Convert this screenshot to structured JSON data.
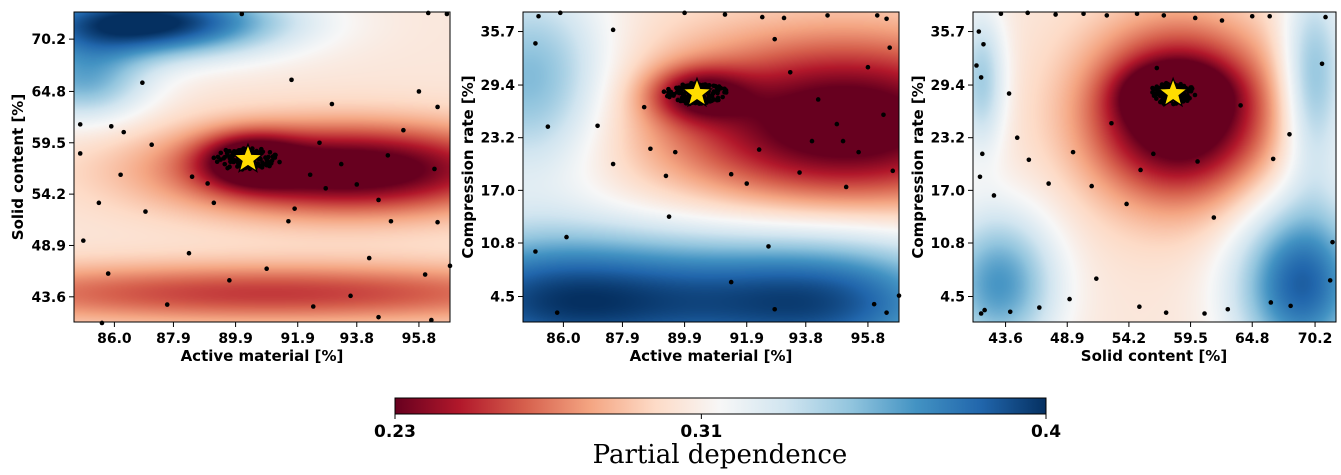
{
  "chart_data": [
    {
      "type": "heatmap",
      "xlabel": "Active material [%]",
      "ylabel": "Solid content [%]",
      "xticks": [
        86.0,
        87.9,
        89.9,
        91.9,
        93.8,
        95.8
      ],
      "xtick_labels": [
        "86.0",
        "87.9",
        "89.9",
        "91.9",
        "93.8",
        "95.8"
      ],
      "yticks": [
        43.6,
        48.9,
        54.2,
        59.5,
        64.8,
        70.2
      ],
      "ytick_labels": [
        "43.6",
        "48.9",
        "54.2",
        "59.5",
        "64.8",
        "70.2"
      ],
      "xlim": [
        84.7,
        96.8
      ],
      "ylim": [
        41.0,
        73.0
      ],
      "optimum": {
        "x": 90.3,
        "y": 57.8
      },
      "low_bands": [
        {
          "center": 93.5,
          "spread_x": 4.0,
          "y": 56.8,
          "spread_y": 3.2,
          "depth": 0.09
        },
        {
          "center": 91.0,
          "spread_x": 8.0,
          "y": 44.0,
          "spread_y": 2.2,
          "depth": 0.05
        }
      ],
      "high_regions": [
        {
          "x": 87.0,
          "y": 72.0,
          "sx": 3.0,
          "sy": 2.5,
          "height": 0.1
        },
        {
          "x": 85.0,
          "y": 66.0,
          "sx": 1.5,
          "sy": 3.0,
          "height": 0.05
        }
      ],
      "samples": [
        [
          87.2,
          59.3
        ],
        [
          86.3,
          60.6
        ],
        [
          85.9,
          61.2
        ],
        [
          88.5,
          56.0
        ],
        [
          89.0,
          55.3
        ],
        [
          87.0,
          52.4
        ],
        [
          86.2,
          56.2
        ],
        [
          85.5,
          53.3
        ],
        [
          87.7,
          42.8
        ],
        [
          89.7,
          45.3
        ],
        [
          92.3,
          56.2
        ],
        [
          91.8,
          52.7
        ],
        [
          91.6,
          51.4
        ],
        [
          93.8,
          55.2
        ],
        [
          94.5,
          53.6
        ],
        [
          93.3,
          57.3
        ],
        [
          95.3,
          60.8
        ],
        [
          95.8,
          64.8
        ],
        [
          94.9,
          51.4
        ],
        [
          94.2,
          47.6
        ],
        [
          96.3,
          56.8
        ],
        [
          96.4,
          51.3
        ],
        [
          96.0,
          45.9
        ],
        [
          93.6,
          43.7
        ],
        [
          92.4,
          42.6
        ],
        [
          94.5,
          41.5
        ],
        [
          96.2,
          41.2
        ],
        [
          89.2,
          53.3
        ],
        [
          90.9,
          46.5
        ],
        [
          96.7,
          72.8
        ],
        [
          96.1,
          72.9
        ],
        [
          90.1,
          72.8
        ],
        [
          85.8,
          46.0
        ],
        [
          85.6,
          40.9
        ],
        [
          85.0,
          49.4
        ],
        [
          93.0,
          63.5
        ],
        [
          94.8,
          58.2
        ],
        [
          91.7,
          66.0
        ],
        [
          96.4,
          63.2
        ],
        [
          92.6,
          59.5
        ],
        [
          86.9,
          65.7
        ],
        [
          84.9,
          58.4
        ],
        [
          84.9,
          61.4
        ],
        [
          96.8,
          46.8
        ],
        [
          92.8,
          54.8
        ],
        [
          88.4,
          48.1
        ]
      ]
    },
    {
      "type": "heatmap",
      "xlabel": "Active material [%]",
      "ylabel": "Compression rate [%]",
      "xticks": [
        86.0,
        87.9,
        89.9,
        91.9,
        93.8,
        95.8
      ],
      "xtick_labels": [
        "86.0",
        "87.9",
        "89.9",
        "91.9",
        "93.8",
        "95.8"
      ],
      "yticks": [
        4.5,
        10.8,
        17.0,
        23.2,
        29.4,
        35.7
      ],
      "ytick_labels": [
        "4.5",
        "10.8",
        "17.0",
        "23.2",
        "29.4",
        "35.7"
      ],
      "xlim": [
        84.7,
        96.8
      ],
      "ylim": [
        1.5,
        38.0
      ],
      "optimum": {
        "x": 90.3,
        "y": 28.4
      },
      "low_bands": [
        {
          "center": 95.0,
          "spread_x": 4.0,
          "y": 25.0,
          "spread_y": 7.0,
          "depth": 0.09
        }
      ],
      "high_regions": [
        {
          "x": 86.0,
          "y": 4.0,
          "sx": 4.0,
          "sy": 6.0,
          "height": 0.09
        },
        {
          "x": 94.5,
          "y": 4.0,
          "sx": 3.5,
          "sy": 6.0,
          "height": 0.08
        },
        {
          "x": 85.0,
          "y": 30.0,
          "sx": 1.8,
          "sy": 8.0,
          "height": 0.05
        }
      ],
      "samples": [
        [
          85.2,
          37.5
        ],
        [
          85.9,
          37.9
        ],
        [
          89.9,
          37.9
        ],
        [
          91.2,
          37.7
        ],
        [
          92.4,
          37.4
        ],
        [
          93.1,
          37.3
        ],
        [
          94.5,
          37.6
        ],
        [
          96.1,
          37.6
        ],
        [
          96.4,
          37.2
        ],
        [
          87.6,
          35.9
        ],
        [
          87.1,
          24.6
        ],
        [
          85.5,
          24.5
        ],
        [
          92.8,
          34.8
        ],
        [
          93.3,
          30.9
        ],
        [
          94.2,
          27.7
        ],
        [
          95.8,
          31.5
        ],
        [
          96.3,
          25.9
        ],
        [
          94.8,
          24.8
        ],
        [
          94.0,
          22.8
        ],
        [
          95.5,
          21.5
        ],
        [
          96.6,
          19.3
        ],
        [
          95.1,
          17.4
        ],
        [
          93.6,
          19.1
        ],
        [
          92.3,
          21.8
        ],
        [
          91.4,
          18.9
        ],
        [
          91.9,
          17.8
        ],
        [
          89.6,
          21.5
        ],
        [
          89.3,
          18.7
        ],
        [
          88.8,
          21.9
        ],
        [
          89.4,
          13.9
        ],
        [
          92.6,
          10.4
        ],
        [
          91.4,
          6.2
        ],
        [
          87.6,
          20.1
        ],
        [
          86.1,
          11.5
        ],
        [
          85.1,
          9.8
        ],
        [
          92.8,
          3.0
        ],
        [
          96.4,
          2.6
        ],
        [
          96.0,
          3.6
        ],
        [
          96.8,
          4.6
        ],
        [
          85.8,
          2.6
        ],
        [
          85.1,
          34.3
        ],
        [
          96.5,
          33.8
        ],
        [
          88.6,
          26.8
        ],
        [
          95.0,
          22.8
        ]
      ]
    },
    {
      "type": "heatmap",
      "xlabel": "Solid content [%]",
      "ylabel": "Compression rate [%]",
      "xticks": [
        43.6,
        48.9,
        54.2,
        59.5,
        64.8,
        70.2
      ],
      "xtick_labels": [
        "43.6",
        "48.9",
        "54.2",
        "59.5",
        "64.8",
        "70.2"
      ],
      "yticks": [
        4.5,
        10.8,
        17.0,
        23.2,
        29.4,
        35.7
      ],
      "ytick_labels": [
        "4.5",
        "10.8",
        "17.0",
        "23.2",
        "29.4",
        "35.7"
      ],
      "xlim": [
        40.8,
        72.0
      ],
      "ylim": [
        1.5,
        38.0
      ],
      "optimum": {
        "x": 58.0,
        "y": 28.4
      },
      "low_bands": [
        {
          "center": 58.5,
          "spread_x": 5.5,
          "y": 26.0,
          "spread_y": 7.0,
          "depth": 0.1
        }
      ],
      "high_regions": [
        {
          "x": 69.0,
          "y": 6.0,
          "sx": 4.0,
          "sy": 7.0,
          "height": 0.08
        },
        {
          "x": 43.0,
          "y": 6.0,
          "sx": 3.5,
          "sy": 6.0,
          "height": 0.06
        },
        {
          "x": 70.0,
          "y": 30.0,
          "sx": 2.0,
          "sy": 8.0,
          "height": 0.05
        },
        {
          "x": 41.5,
          "y": 30.0,
          "sx": 1.5,
          "sy": 6.0,
          "height": 0.04
        }
      ],
      "samples": [
        [
          43.2,
          37.8
        ],
        [
          45.5,
          37.9
        ],
        [
          47.9,
          37.7
        ],
        [
          50.3,
          37.8
        ],
        [
          52.3,
          37.6
        ],
        [
          54.9,
          37.8
        ],
        [
          57.2,
          37.6
        ],
        [
          59.9,
          37.3
        ],
        [
          62.2,
          37.0
        ],
        [
          64.8,
          37.5
        ],
        [
          66.3,
          37.5
        ],
        [
          41.3,
          35.7
        ],
        [
          41.7,
          34.2
        ],
        [
          41.1,
          31.7
        ],
        [
          41.5,
          30.3
        ],
        [
          43.9,
          28.4
        ],
        [
          44.6,
          23.2
        ],
        [
          45.6,
          20.6
        ],
        [
          41.6,
          21.3
        ],
        [
          41.4,
          18.6
        ],
        [
          42.6,
          16.4
        ],
        [
          47.3,
          17.8
        ],
        [
          49.4,
          21.5
        ],
        [
          51.0,
          17.5
        ],
        [
          52.7,
          24.9
        ],
        [
          54.0,
          15.4
        ],
        [
          55.2,
          19.4
        ],
        [
          56.3,
          21.3
        ],
        [
          60.1,
          20.4
        ],
        [
          61.5,
          13.8
        ],
        [
          63.8,
          27.0
        ],
        [
          66.6,
          20.7
        ],
        [
          68.0,
          23.6
        ],
        [
          70.8,
          31.9
        ],
        [
          71.7,
          10.9
        ],
        [
          71.5,
          6.4
        ],
        [
          68.1,
          3.4
        ],
        [
          66.4,
          3.8
        ],
        [
          62.7,
          3.0
        ],
        [
          60.7,
          2.5
        ],
        [
          57.4,
          2.6
        ],
        [
          55.1,
          3.3
        ],
        [
          51.4,
          6.6
        ],
        [
          49.1,
          4.2
        ],
        [
          46.5,
          3.2
        ],
        [
          44.0,
          2.7
        ],
        [
          41.5,
          2.5
        ],
        [
          41.8,
          2.9
        ],
        [
          71.1,
          37.4
        ],
        [
          56.6,
          31.4
        ]
      ]
    }
  ],
  "colorbar": {
    "min": 0.23,
    "max": 0.4,
    "tick_labels": [
      "0.23",
      "0.31",
      "0.4"
    ],
    "ticks": [
      0.23,
      0.31,
      0.4
    ],
    "label": "Partial dependence",
    "colormap": "RdBu"
  }
}
